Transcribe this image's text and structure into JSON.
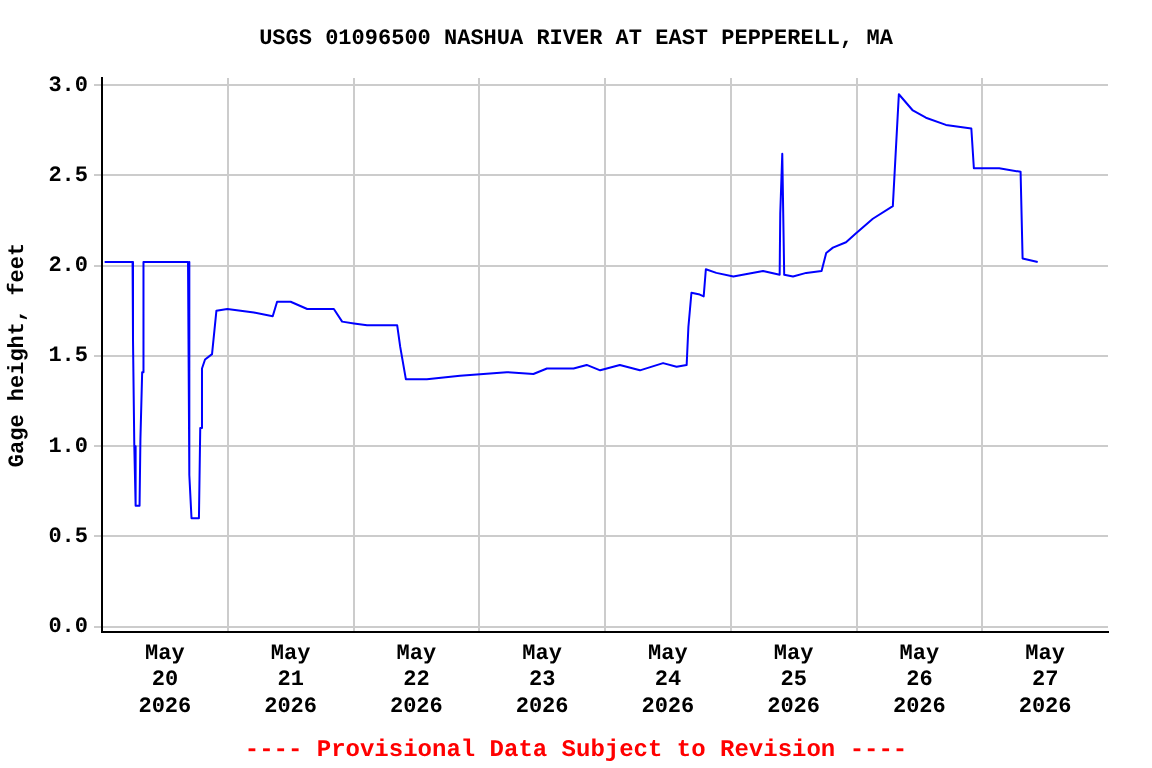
{
  "chart_data": {
    "type": "line",
    "title": "USGS 01096500 NASHUA RIVER AT EAST PEPPERELL, MA",
    "ylabel": "Gage height, feet",
    "annotations": [
      "---- Provisional Data Subject to Revision ----"
    ],
    "x": [
      "2026-05-20T00:30",
      "2026-05-20T05:50",
      "2026-05-20T05:55",
      "2026-05-20T06:10",
      "2026-05-20T06:25",
      "2026-05-20T07:10",
      "2026-05-20T07:20",
      "2026-05-20T07:40",
      "2026-05-20T07:55",
      "2026-05-20T16:25",
      "2026-05-20T16:40",
      "2026-05-20T17:05",
      "2026-05-20T18:30",
      "2026-05-20T18:45",
      "2026-05-20T19:05",
      "2026-05-20T19:40",
      "2026-05-20T21:00",
      "2026-05-20T21:50",
      "2026-05-20T23:55",
      "2026-05-21T05:00",
      "2026-05-21T08:35",
      "2026-05-21T09:25",
      "2026-05-21T12:00",
      "2026-05-21T15:10",
      "2026-05-21T20:15",
      "2026-05-21T21:50",
      "2026-05-22T00:05",
      "2026-05-22T02:35",
      "2026-05-22T08:20",
      "2026-05-22T08:55",
      "2026-05-22T10:00",
      "2026-05-22T14:00",
      "2026-05-22T20:20",
      "2026-05-23T05:15",
      "2026-05-23T10:20",
      "2026-05-23T12:55",
      "2026-05-23T18:00",
      "2026-05-23T20:30",
      "2026-05-23T23:05",
      "2026-05-24T02:50",
      "2026-05-24T06:40",
      "2026-05-24T11:05",
      "2026-05-24T13:40",
      "2026-05-24T15:35",
      "2026-05-24T15:55",
      "2026-05-24T16:30",
      "2026-05-24T18:05",
      "2026-05-24T18:50",
      "2026-05-24T19:15",
      "2026-05-24T21:15",
      "2026-05-25T00:30",
      "2026-05-25T06:10",
      "2026-05-25T09:20",
      "2026-05-25T09:27",
      "2026-05-25T09:50",
      "2026-05-25T10:12",
      "2026-05-25T11:53",
      "2026-05-25T14:24",
      "2026-05-25T17:20",
      "2026-05-25T18:13",
      "2026-05-25T19:30",
      "2026-05-25T22:00",
      "2026-05-25T23:55",
      "2026-05-26T03:07",
      "2026-05-26T06:56",
      "2026-05-26T07:26",
      "2026-05-26T08:05",
      "2026-05-26T10:45",
      "2026-05-26T13:15",
      "2026-05-26T17:04",
      "2026-05-26T21:55",
      "2026-05-26T22:24",
      "2026-05-27T03:14",
      "2026-05-27T07:19",
      "2026-05-27T07:42",
      "2026-05-27T10:35"
    ],
    "series": [
      {
        "color": "#0000ff",
        "values": [
          2.02,
          2.02,
          1.59,
          1.0,
          0.67,
          0.67,
          1.04,
          1.41,
          2.02,
          2.02,
          0.84,
          0.6,
          0.6,
          1.1,
          1.43,
          1.48,
          1.51,
          1.75,
          1.76,
          1.74,
          1.72,
          1.8,
          1.8,
          1.76,
          1.76,
          1.69,
          1.68,
          1.67,
          1.67,
          1.55,
          1.37,
          1.37,
          1.39,
          1.41,
          1.4,
          1.43,
          1.43,
          1.45,
          1.42,
          1.45,
          1.42,
          1.46,
          1.44,
          1.45,
          1.66,
          1.85,
          1.84,
          1.83,
          1.98,
          1.96,
          1.94,
          1.97,
          1.95,
          2.29,
          2.62,
          1.95,
          1.94,
          1.96,
          1.97,
          2.07,
          2.1,
          2.13,
          2.18,
          2.26,
          2.33,
          2.6,
          2.95,
          2.86,
          2.82,
          2.78,
          2.76,
          2.54,
          2.54,
          2.52,
          2.04,
          2.02
        ]
      }
    ],
    "xlim": [
      "2026-05-20T00:00",
      "2026-05-28T00:00"
    ],
    "xticks": [
      {
        "value": "2026-05-20T12:00",
        "label": "May 20 2026"
      },
      {
        "value": "2026-05-21T00:00",
        "label": null
      },
      {
        "value": "2026-05-21T12:00",
        "label": "May 21 2026"
      },
      {
        "value": "2026-05-22T00:00",
        "label": null
      },
      {
        "value": "2026-05-22T12:00",
        "label": "May 22 2026"
      },
      {
        "value": "2026-05-23T00:00",
        "label": null
      },
      {
        "value": "2026-05-23T12:00",
        "label": "May 23 2026"
      },
      {
        "value": "2026-05-24T00:00",
        "label": null
      },
      {
        "value": "2026-05-24T12:00",
        "label": "May 24 2026"
      },
      {
        "value": "2026-05-25T00:00",
        "label": null
      },
      {
        "value": "2026-05-25T12:00",
        "label": "May 25 2026"
      },
      {
        "value": "2026-05-26T00:00",
        "label": null
      },
      {
        "value": "2026-05-26T12:00",
        "label": "May 26 2026"
      },
      {
        "value": "2026-05-27T00:00",
        "label": null
      },
      {
        "value": "2026-05-27T12:00",
        "label": "May 27 2026"
      }
    ],
    "ylim": [
      -0.03,
      3.04
    ],
    "yticks": [
      {
        "value": 0,
        "label": "0.0"
      },
      {
        "value": 0.5,
        "label": "0.5"
      },
      {
        "value": 1,
        "label": "1.0"
      },
      {
        "value": 1.5,
        "label": "1.5"
      },
      {
        "value": 2,
        "label": "2.0"
      },
      {
        "value": 2.5,
        "label": "2.5"
      },
      {
        "value": 3,
        "label": "3.0"
      }
    ],
    "grid": true,
    "legend": false,
    "marker": "none",
    "line_style": "solid"
  }
}
